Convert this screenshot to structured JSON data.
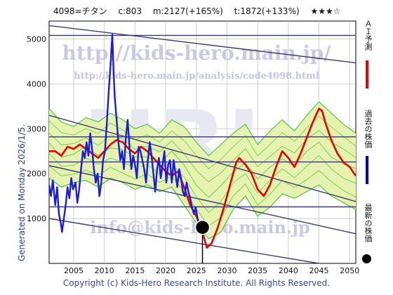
{
  "header": {
    "code": "4098=チタン",
    "current": "c:803",
    "max": "m:2127(+165%)",
    "target": "t:1872(+133%)",
    "stars": "★★★☆"
  },
  "generated": "Generated on Monday 2026/1/5.",
  "copyright": "Copyright (c) Kids-Hero Research Institute. All Rights Reserved.",
  "watermarks": {
    "url": "http://kids-hero.main.jp/",
    "analysis_url": "http://kids-hero.main.jp/analysis/code4098.html",
    "email": "info@kids-hero.main.jp",
    "logo": "URL"
  },
  "legend": [
    {
      "label": "ＡＩ予測",
      "color": "#ee0000"
    },
    {
      "label": "過去の株価",
      "color": "#0000dd"
    },
    {
      "label": "最新の株価",
      "color": "#000000"
    }
  ],
  "colors": {
    "past_price": "#1a1ae6",
    "ai_forecast": "#e60000",
    "band_fill": "#e6f2b0",
    "band_lines": "#33bb22",
    "trend_lines": "#3a3a70",
    "grid": "#bbbbbb"
  },
  "chart_data": {
    "type": "line",
    "title": "",
    "xlabel": "",
    "ylabel": "",
    "xlim": [
      2001,
      2051
    ],
    "ylim": [
      0,
      5400
    ],
    "x_ticks": [
      2005,
      2010,
      2015,
      2020,
      2025,
      2030,
      2035,
      2040,
      2045,
      2050
    ],
    "y_ticks": [
      1000,
      2000,
      3000,
      4000,
      5000
    ],
    "grid": true,
    "latest_price": {
      "x": 2026.0,
      "y": 803
    },
    "series": [
      {
        "name": "過去の株価",
        "points": [
          [
            2001.0,
            1750
          ],
          [
            2001.3,
            1500
          ],
          [
            2001.6,
            1850
          ],
          [
            2002.0,
            1300
          ],
          [
            2002.3,
            1700
          ],
          [
            2002.6,
            1100
          ],
          [
            2002.9,
            900
          ],
          [
            2003.1,
            700
          ],
          [
            2003.4,
            1000
          ],
          [
            2003.7,
            1300
          ],
          [
            2004.0,
            1700
          ],
          [
            2004.3,
            1450
          ],
          [
            2004.6,
            1900
          ],
          [
            2004.9,
            1650
          ],
          [
            2005.3,
            1800
          ],
          [
            2005.6,
            1350
          ],
          [
            2005.9,
            1650
          ],
          [
            2006.2,
            2100
          ],
          [
            2006.5,
            2500
          ],
          [
            2006.8,
            2350
          ],
          [
            2007.1,
            2700
          ],
          [
            2007.4,
            2400
          ],
          [
            2007.7,
            2900
          ],
          [
            2008.0,
            2550
          ],
          [
            2008.3,
            2100
          ],
          [
            2008.6,
            1800
          ],
          [
            2008.9,
            2000
          ],
          [
            2009.2,
            1500
          ],
          [
            2009.5,
            1800
          ],
          [
            2009.8,
            2300
          ],
          [
            2010.1,
            2500
          ],
          [
            2010.4,
            3100
          ],
          [
            2010.7,
            3800
          ],
          [
            2011.0,
            4400
          ],
          [
            2011.3,
            5100
          ],
          [
            2011.5,
            4300
          ],
          [
            2011.7,
            3700
          ],
          [
            2012.0,
            3200
          ],
          [
            2012.3,
            2700
          ],
          [
            2012.6,
            2300
          ],
          [
            2012.9,
            2500
          ],
          [
            2013.2,
            2100
          ],
          [
            2013.5,
            2800
          ],
          [
            2013.8,
            3200
          ],
          [
            2014.1,
            2600
          ],
          [
            2014.4,
            2100
          ],
          [
            2014.7,
            2400
          ],
          [
            2015.0,
            2200
          ],
          [
            2015.3,
            1900
          ],
          [
            2015.6,
            2600
          ],
          [
            2015.9,
            2500
          ],
          [
            2016.2,
            2300
          ],
          [
            2016.5,
            2100
          ],
          [
            2016.8,
            1800
          ],
          [
            2017.1,
            2300
          ],
          [
            2017.4,
            2700
          ],
          [
            2017.7,
            2400
          ],
          [
            2018.0,
            2000
          ],
          [
            2018.3,
            1600
          ],
          [
            2018.6,
            2100
          ],
          [
            2018.9,
            2350
          ],
          [
            2019.2,
            1900
          ],
          [
            2019.5,
            2200
          ],
          [
            2019.8,
            2500
          ],
          [
            2020.1,
            1800
          ],
          [
            2020.4,
            2200
          ],
          [
            2020.7,
            2300
          ],
          [
            2021.0,
            1800
          ],
          [
            2021.3,
            2300
          ],
          [
            2021.6,
            2000
          ],
          [
            2021.9,
            1700
          ],
          [
            2022.2,
            2100
          ],
          [
            2022.5,
            1900
          ],
          [
            2022.8,
            1600
          ],
          [
            2023.1,
            1500
          ],
          [
            2023.4,
            1800
          ],
          [
            2023.7,
            1600
          ],
          [
            2024.0,
            1450
          ],
          [
            2024.3,
            1250
          ],
          [
            2024.6,
            1100
          ],
          [
            2024.9,
            1250
          ],
          [
            2025.2,
            1000
          ],
          [
            2025.5,
            900
          ],
          [
            2025.8,
            850
          ],
          [
            2026.0,
            803
          ]
        ]
      },
      {
        "name": "ＡＩ予測",
        "points": [
          [
            2001.0,
            2500
          ],
          [
            2002.0,
            2500
          ],
          [
            2003.0,
            2400
          ],
          [
            2004.0,
            2600
          ],
          [
            2005.0,
            2550
          ],
          [
            2006.0,
            2650
          ],
          [
            2007.0,
            2550
          ],
          [
            2008.0,
            2450
          ],
          [
            2009.0,
            2350
          ],
          [
            2010.0,
            2500
          ],
          [
            2011.0,
            2650
          ],
          [
            2012.0,
            2750
          ],
          [
            2013.0,
            2700
          ],
          [
            2014.0,
            2550
          ],
          [
            2015.0,
            2450
          ],
          [
            2016.0,
            2600
          ],
          [
            2017.0,
            2500
          ],
          [
            2018.0,
            2350
          ],
          [
            2019.0,
            2200
          ],
          [
            2020.0,
            2050
          ],
          [
            2021.0,
            1950
          ],
          [
            2022.0,
            2050
          ],
          [
            2023.0,
            1700
          ],
          [
            2024.0,
            1300
          ],
          [
            2025.0,
            1050
          ],
          [
            2026.0,
            700
          ],
          [
            2026.7,
            350
          ],
          [
            2027.5,
            450
          ],
          [
            2028.5,
            800
          ],
          [
            2029.5,
            1250
          ],
          [
            2030.5,
            1750
          ],
          [
            2031.5,
            2250
          ],
          [
            2032.0,
            2350
          ],
          [
            2033.0,
            2200
          ],
          [
            2034.0,
            2000
          ],
          [
            2035.0,
            1650
          ],
          [
            2036.0,
            1500
          ],
          [
            2037.0,
            1750
          ],
          [
            2038.0,
            2150
          ],
          [
            2039.0,
            2500
          ],
          [
            2040.0,
            2350
          ],
          [
            2041.0,
            2150
          ],
          [
            2042.0,
            2450
          ],
          [
            2043.0,
            2800
          ],
          [
            2044.0,
            3150
          ],
          [
            2045.0,
            3450
          ],
          [
            2045.5,
            3400
          ],
          [
            2046.0,
            3150
          ],
          [
            2047.0,
            2750
          ],
          [
            2048.0,
            2450
          ],
          [
            2049.0,
            2250
          ],
          [
            2050.0,
            2150
          ],
          [
            2051.0,
            1950
          ]
        ]
      },
      {
        "name": "upper band",
        "points": [
          [
            2001.0,
            3450
          ],
          [
            2003.0,
            3150
          ],
          [
            2005.0,
            3050
          ],
          [
            2007.0,
            3250
          ],
          [
            2009.0,
            3150
          ],
          [
            2011.0,
            3350
          ],
          [
            2013.0,
            3200
          ],
          [
            2015.0,
            3000
          ],
          [
            2017.0,
            3100
          ],
          [
            2019.0,
            2900
          ],
          [
            2021.0,
            3200
          ],
          [
            2023.0,
            3050
          ],
          [
            2025.0,
            2700
          ],
          [
            2027.0,
            2400
          ],
          [
            2029.0,
            2650
          ],
          [
            2031.0,
            2900
          ],
          [
            2033.0,
            3100
          ],
          [
            2035.0,
            2650
          ],
          [
            2037.0,
            2950
          ],
          [
            2039.0,
            3200
          ],
          [
            2041.0,
            2950
          ],
          [
            2043.0,
            3300
          ],
          [
            2045.0,
            3600
          ],
          [
            2047.0,
            3350
          ],
          [
            2049.0,
            3100
          ],
          [
            2051.0,
            2900
          ]
        ]
      },
      {
        "name": "lower band",
        "points": [
          [
            2001.0,
            1900
          ],
          [
            2003.0,
            1700
          ],
          [
            2005.0,
            1800
          ],
          [
            2007.0,
            1850
          ],
          [
            2009.0,
            1700
          ],
          [
            2011.0,
            1900
          ],
          [
            2013.0,
            1800
          ],
          [
            2015.0,
            1650
          ],
          [
            2017.0,
            1750
          ],
          [
            2019.0,
            1600
          ],
          [
            2021.0,
            1700
          ],
          [
            2023.0,
            1300
          ],
          [
            2025.0,
            900
          ],
          [
            2027.0,
            550
          ],
          [
            2029.0,
            700
          ],
          [
            2031.0,
            1200
          ],
          [
            2033.0,
            1500
          ],
          [
            2035.0,
            1050
          ],
          [
            2037.0,
            1250
          ],
          [
            2039.0,
            1550
          ],
          [
            2041.0,
            1450
          ],
          [
            2043.0,
            1600
          ],
          [
            2045.0,
            1750
          ],
          [
            2047.0,
            1500
          ],
          [
            2049.0,
            1350
          ],
          [
            2051.0,
            1200
          ]
        ]
      }
    ],
    "trend_lines": [
      {
        "from": [
          2001,
          5300
        ],
        "to": [
          2051,
          4470
        ]
      },
      {
        "from": [
          2001,
          3300
        ],
        "to": [
          2051,
          1380
        ]
      },
      {
        "from": [
          2001,
          2180
        ],
        "to": [
          2051,
          660
        ]
      },
      {
        "from": [
          2001,
          1000
        ],
        "to": [
          2045,
          0
        ]
      },
      {
        "from": [
          2001,
          2820
        ],
        "to": [
          2051,
          2820
        ]
      },
      {
        "from": [
          2001,
          2260
        ],
        "to": [
          2051,
          2260
        ]
      },
      {
        "from": [
          2001,
          1260
        ],
        "to": [
          2051,
          1260
        ]
      },
      {
        "from": [
          2001,
          5080
        ],
        "to": [
          2051,
          5080
        ]
      }
    ]
  }
}
